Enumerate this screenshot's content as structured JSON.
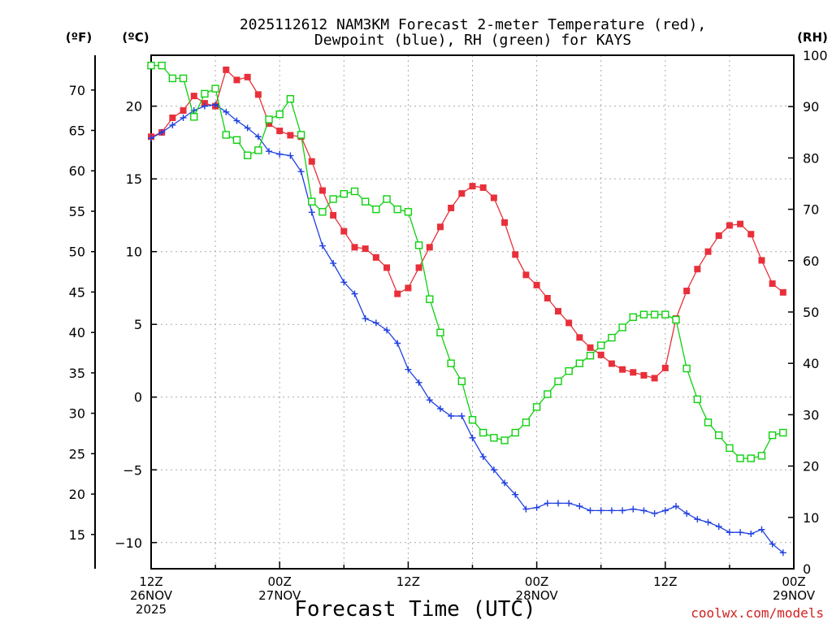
{
  "chart_data": {
    "type": "line",
    "title_line1": "2025112612 NAM3KM Forecast 2-meter Temperature (red),",
    "title_line2": "Dewpoint (blue), RH (green) for KAYS",
    "left_unit_f": "(ºF)",
    "left_unit_c": "(ºC)",
    "right_unit": "(RH)",
    "xlabel": "Forecast Time (UTC)",
    "credit": "coolwx.com/models",
    "x_range_hours": [
      0,
      60
    ],
    "celsius_range": [
      -11.8,
      23.5
    ],
    "rh_range": [
      0,
      100
    ],
    "celsius_ticks": [
      "20",
      "15",
      "10",
      "5",
      "0",
      "−5",
      "−10"
    ],
    "celsius_tick_values": [
      20,
      15,
      10,
      5,
      0,
      -5,
      -10
    ],
    "fahrenheit_ticks": [
      "70",
      "65",
      "60",
      "55",
      "50",
      "45",
      "40",
      "35",
      "30",
      "25",
      "20",
      "15"
    ],
    "fahrenheit_tick_values": [
      70,
      65,
      60,
      55,
      50,
      45,
      40,
      35,
      30,
      25,
      20,
      15
    ],
    "rh_ticks": [
      "100",
      "90",
      "80",
      "70",
      "60",
      "50",
      "40",
      "30",
      "20",
      "10",
      "0"
    ],
    "rh_tick_values": [
      100,
      90,
      80,
      70,
      60,
      50,
      40,
      30,
      20,
      10,
      0
    ],
    "x_ticks": [
      {
        "hour": 0,
        "time": "12Z",
        "date": "26NOV",
        "year": "2025"
      },
      {
        "hour": 12,
        "time": "00Z",
        "date": "27NOV",
        "year": ""
      },
      {
        "hour": 24,
        "time": "12Z",
        "date": "",
        "year": ""
      },
      {
        "hour": 36,
        "time": "00Z",
        "date": "28NOV",
        "year": ""
      },
      {
        "hour": 48,
        "time": "12Z",
        "date": "",
        "year": ""
      },
      {
        "hour": 60,
        "time": "00Z",
        "date": "29NOV",
        "year": ""
      }
    ],
    "series": [
      {
        "name": "2-meter Temperature (°C)",
        "color": "#e8303a",
        "marker": "filled-square",
        "axis": "celsius",
        "values": [
          17.9,
          18.2,
          19.2,
          19.7,
          20.7,
          20.2,
          20.0,
          22.5,
          21.8,
          22.0,
          20.8,
          18.8,
          18.3,
          18.0,
          17.9,
          16.2,
          14.2,
          12.5,
          11.4,
          10.3,
          10.2,
          9.6,
          8.9,
          7.1,
          7.5,
          8.9,
          10.3,
          11.7,
          13.0,
          14.0,
          14.5,
          14.4,
          13.7,
          12.0,
          9.8,
          8.4,
          7.7,
          6.8,
          5.9,
          5.1,
          4.1,
          3.4,
          2.9,
          2.3,
          1.9,
          1.7,
          1.5,
          1.3,
          2.0,
          5.4,
          7.3,
          8.8,
          10.0,
          11.1,
          11.8,
          11.9,
          11.2,
          9.4,
          7.8,
          7.2
        ]
      },
      {
        "name": "Dewpoint (°C)",
        "color": "#2040e0",
        "marker": "plus",
        "axis": "celsius",
        "values": [
          17.8,
          18.2,
          18.7,
          19.2,
          19.7,
          20.0,
          20.1,
          19.6,
          19.0,
          18.5,
          17.9,
          16.9,
          16.7,
          16.6,
          15.5,
          12.7,
          10.4,
          9.2,
          7.9,
          7.1,
          5.4,
          5.1,
          4.6,
          3.7,
          1.9,
          1.0,
          -0.2,
          -0.8,
          -1.3,
          -1.3,
          -2.8,
          -4.1,
          -5.0,
          -5.9,
          -6.7,
          -7.7,
          -7.6,
          -7.3,
          -7.3,
          -7.3,
          -7.5,
          -7.8,
          -7.8,
          -7.8,
          -7.8,
          -7.7,
          -7.8,
          -8.0,
          -7.8,
          -7.5,
          -8.0,
          -8.4,
          -8.6,
          -8.9,
          -9.3,
          -9.3,
          -9.4,
          -9.1,
          -10.1,
          -10.7
        ]
      },
      {
        "name": "RH (%)",
        "color": "#10d010",
        "marker": "open-square",
        "axis": "rh",
        "values": [
          98,
          98,
          95.5,
          95.5,
          88,
          92.5,
          93.5,
          84.5,
          83.5,
          80.5,
          81.5,
          87.5,
          88.5,
          91.5,
          84.5,
          71.5,
          69.5,
          72,
          73,
          73.5,
          71.5,
          70,
          72,
          70,
          69.5,
          63,
          52.5,
          46,
          40,
          36.5,
          29,
          26.5,
          25.5,
          25,
          26.5,
          28.5,
          31.5,
          34,
          36.5,
          38.5,
          40,
          41.5,
          43.5,
          45,
          47,
          49,
          49.5,
          49.5,
          49.5,
          48.5,
          39,
          33,
          28.5,
          26,
          23.5,
          21.5,
          21.5,
          22,
          26,
          26.5
        ]
      }
    ]
  }
}
